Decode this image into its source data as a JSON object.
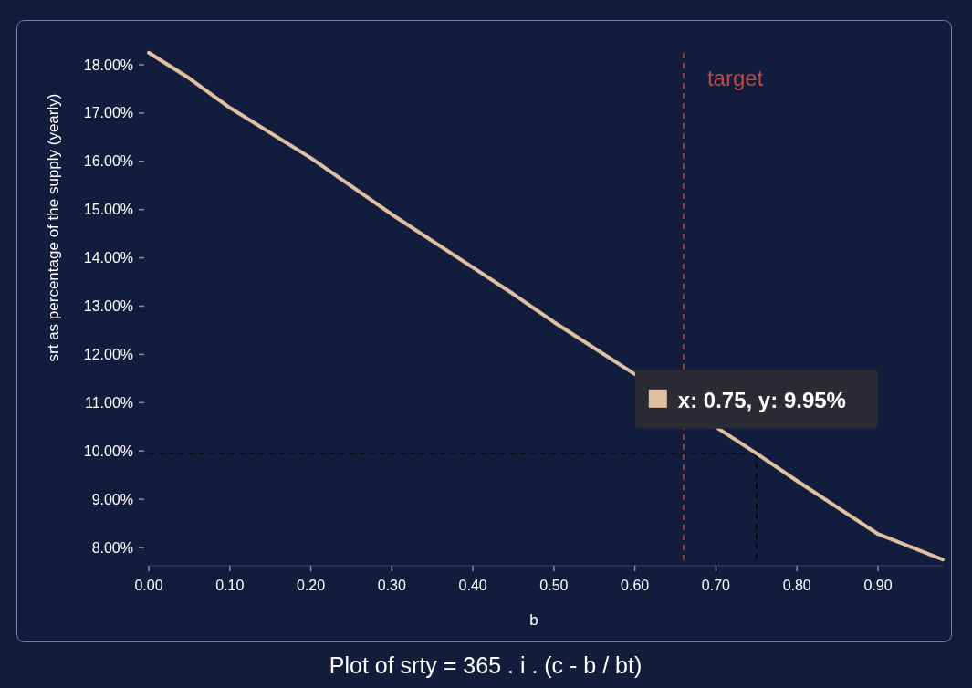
{
  "chart_data": {
    "type": "line",
    "title": "Plot of srty = 365 . i . (c - b / bt)",
    "xlabel": "b",
    "ylabel": "srt as percentage of the supply (yearly)",
    "x": [
      0,
      0.05,
      0.1,
      0.2,
      0.3,
      0.4,
      0.45,
      0.5,
      0.6,
      0.75,
      0.8,
      0.85,
      0.9,
      0.98
    ],
    "series": [
      {
        "color": "#e0c0a2",
        "values": [
          18.25,
          17.72,
          17.11,
          16.07,
          14.9,
          13.8,
          13.25,
          12.67,
          11.59,
          9.95,
          9.38,
          8.83,
          8.28,
          7.75
        ]
      }
    ],
    "xlim": [
      0,
      0.98
    ],
    "ylim": [
      7.7,
      18.3
    ],
    "xticks": [
      {
        "value": 0,
        "label": "0.00"
      },
      {
        "value": 0.1,
        "label": "0.10"
      },
      {
        "value": 0.2,
        "label": "0.20"
      },
      {
        "value": 0.3,
        "label": "0.30"
      },
      {
        "value": 0.4,
        "label": "0.40"
      },
      {
        "value": 0.5,
        "label": "0.50"
      },
      {
        "value": 0.6,
        "label": "0.60"
      },
      {
        "value": 0.7,
        "label": "0.70"
      },
      {
        "value": 0.8,
        "label": "0.80"
      },
      {
        "value": 0.9,
        "label": "0.90"
      }
    ],
    "yticks": [
      {
        "value": 8,
        "label": "8.00%"
      },
      {
        "value": 9,
        "label": "9.00%"
      },
      {
        "value": 10,
        "label": "10.00%"
      },
      {
        "value": 11,
        "label": "11.00%"
      },
      {
        "value": 12,
        "label": "12.00%"
      },
      {
        "value": 13,
        "label": "13.00%"
      },
      {
        "value": 14,
        "label": "14.00%"
      },
      {
        "value": 15,
        "label": "15.00%"
      },
      {
        "value": 16,
        "label": "16.00%"
      },
      {
        "value": 17,
        "label": "17.00%"
      },
      {
        "value": 18,
        "label": "18.00%"
      }
    ],
    "ref_lines": [
      {
        "axis": "x",
        "value": 0.66,
        "label": "target",
        "color": "#b84a4a",
        "line_style": "dashed"
      },
      {
        "axis": "x",
        "value": 0.75,
        "color": "#000000",
        "line_style": "dashed"
      },
      {
        "axis": "y",
        "value": 9.95,
        "color": "#000000",
        "line_style": "dashed"
      }
    ],
    "annotations": [
      {
        "text": "x: 0.75, y: 9.95%",
        "x": 0.75,
        "y": 9.95
      }
    ],
    "grid": false,
    "marker": "none",
    "line_style": "solid"
  }
}
